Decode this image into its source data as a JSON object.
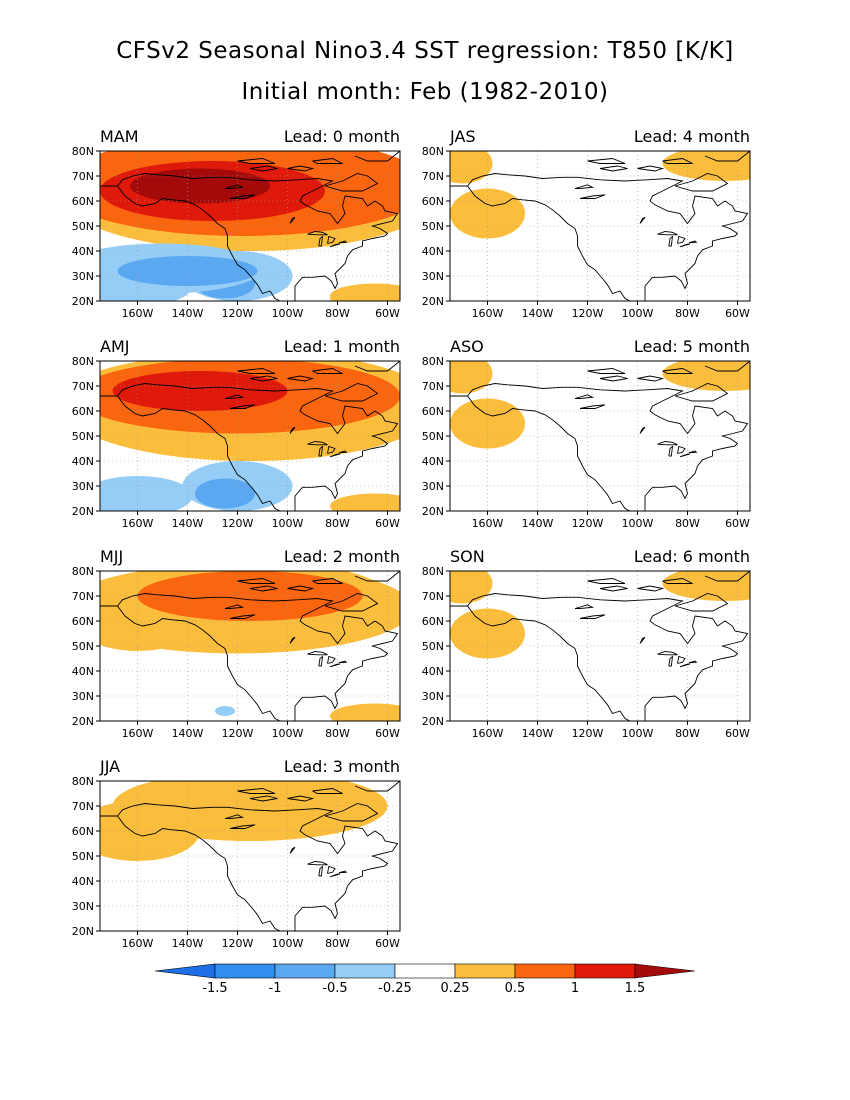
{
  "title": {
    "line1": "CFSv2 Seasonal Nino3.4 SST regression: T850 [K/K]",
    "line2": "Initial month: Feb (1982-2010)"
  },
  "axes": {
    "lat_labels": [
      "80N",
      "70N",
      "60N",
      "50N",
      "40N",
      "30N",
      "20N"
    ],
    "lon_labels": [
      "160W",
      "140W",
      "120W",
      "100W",
      "80W",
      "60W"
    ]
  },
  "panels": [
    {
      "season": "MAM",
      "lead": "Lead: 0 month",
      "intensity": 4
    },
    {
      "season": "AMJ",
      "lead": "Lead: 1 month",
      "intensity": 3
    },
    {
      "season": "MJJ",
      "lead": "Lead: 2 month",
      "intensity": 2
    },
    {
      "season": "JJA",
      "lead": "Lead: 3 month",
      "intensity": 1
    },
    {
      "season": "JAS",
      "lead": "Lead: 4 month",
      "intensity": 0
    },
    {
      "season": "ASO",
      "lead": "Lead: 5 month",
      "intensity": 0
    },
    {
      "season": "SON",
      "lead": "Lead: 6 month",
      "intensity": 0
    }
  ],
  "colorbar": {
    "labels": [
      "-1.5",
      "-1",
      "-0.5",
      "-0.25",
      "0.25",
      "0.5",
      "1",
      "1.5"
    ],
    "colors": [
      "#1e6fe6",
      "#2f8ef0",
      "#5aa8f2",
      "#96cdf6",
      "#ffffff",
      "#fbbe3c",
      "#fa6510",
      "#e01a0a",
      "#a50a0a"
    ]
  }
}
